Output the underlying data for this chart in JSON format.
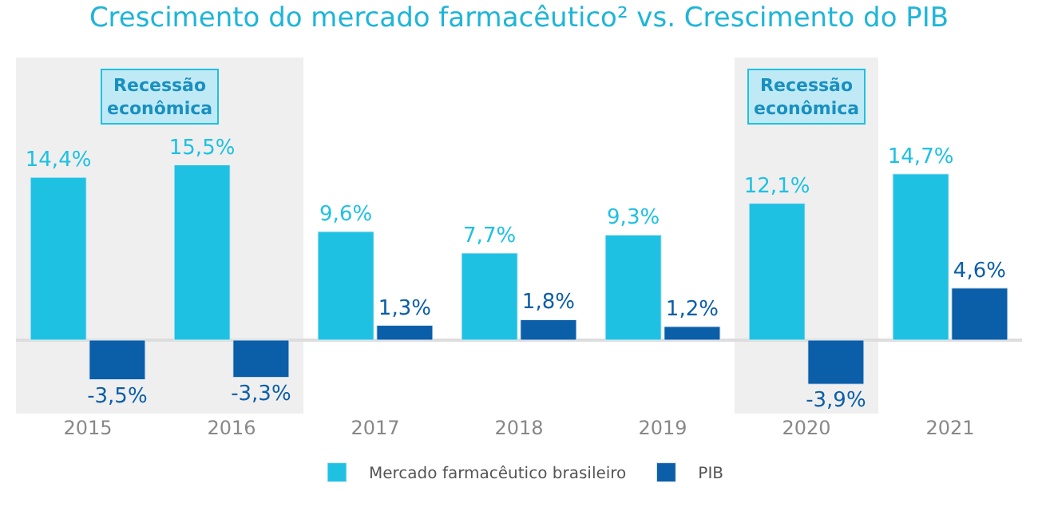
{
  "chart_data": {
    "type": "bar",
    "title": "Crescimento do mercado farmacêutico² vs. Crescimento do PIB",
    "categories": [
      "2015",
      "2016",
      "2017",
      "2018",
      "2019",
      "2020",
      "2021"
    ],
    "relative": false,
    "series": [
      {
        "name": "Mercado farmacêutico brasileiro",
        "color": "#1fc1e2",
        "values": [
          14.4,
          15.5,
          9.6,
          7.7,
          9.3,
          12.1,
          14.7
        ],
        "value_labels": [
          "14,4%",
          "15,5%",
          "9,6%",
          "7,7%",
          "9,3%",
          "12,1%",
          "14,7%"
        ]
      },
      {
        "name": "PIB",
        "color": "#0b5ea8",
        "values": [
          -3.5,
          -3.3,
          1.3,
          1.8,
          1.2,
          -3.9,
          4.6
        ],
        "value_labels": [
          "-3,5%",
          "-3,3%",
          "1,3%",
          "1,8%",
          "1,2%",
          "-3,9%",
          "4,6%"
        ]
      }
    ],
    "bands": [
      {
        "axis": "x",
        "from": "2015",
        "to": "2016",
        "label": "Recessão econômica",
        "color": "#efefef"
      },
      {
        "axis": "x",
        "from": "2020",
        "to": "2020",
        "label": "Recessão econômica",
        "color": "#efefef"
      }
    ],
    "legend": "bottom",
    "grid": false
  }
}
